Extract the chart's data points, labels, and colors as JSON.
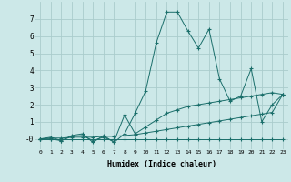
{
  "xlabel": "Humidex (Indice chaleur)",
  "bg_color": "#cce8e8",
  "grid_color": "#aacccc",
  "line_color": "#1a6e6a",
  "xlim": [
    -0.5,
    23.5
  ],
  "ylim": [
    -0.6,
    8.0
  ],
  "yticks": [
    0,
    1,
    2,
    3,
    4,
    5,
    6,
    7
  ],
  "ytick_labels": [
    "-0",
    "1",
    "2",
    "3",
    "4",
    "5",
    "6",
    "7"
  ],
  "xticks": [
    0,
    1,
    2,
    3,
    4,
    5,
    6,
    7,
    8,
    9,
    10,
    11,
    12,
    13,
    14,
    15,
    16,
    17,
    18,
    19,
    20,
    21,
    22,
    23
  ],
  "series": [
    {
      "x": [
        0,
        1,
        2,
        3,
        4,
        5,
        6,
        7,
        8,
        9,
        10,
        11,
        12,
        13,
        14,
        15,
        16,
        17,
        18,
        19,
        20,
        21,
        22,
        23
      ],
      "y": [
        0.0,
        0.0,
        0.0,
        0.0,
        0.0,
        0.0,
        0.0,
        0.0,
        0.0,
        0.0,
        0.0,
        0.0,
        0.0,
        0.0,
        0.0,
        0.0,
        0.0,
        0.0,
        0.0,
        0.0,
        0.0,
        0.0,
        0.0,
        0.0
      ]
    },
    {
      "x": [
        0,
        1,
        2,
        3,
        4,
        5,
        6,
        7,
        8,
        9,
        10,
        11,
        12,
        13,
        14,
        15,
        16,
        17,
        18,
        19,
        20,
        21,
        22,
        23
      ],
      "y": [
        0.0,
        0.1,
        -0.1,
        0.2,
        0.3,
        -0.2,
        0.2,
        -0.2,
        0.3,
        1.5,
        2.8,
        5.6,
        7.4,
        7.4,
        6.3,
        5.3,
        6.4,
        3.5,
        2.2,
        2.5,
        4.1,
        1.0,
        2.0,
        2.6
      ]
    },
    {
      "x": [
        0,
        1,
        2,
        3,
        4,
        5,
        6,
        7,
        8,
        9,
        10,
        11,
        12,
        13,
        14,
        15,
        16,
        17,
        18,
        19,
        20,
        21,
        22,
        23
      ],
      "y": [
        0.0,
        0.0,
        -0.1,
        0.15,
        0.2,
        -0.1,
        0.1,
        -0.15,
        1.4,
        0.3,
        0.7,
        1.1,
        1.5,
        1.7,
        1.9,
        2.0,
        2.1,
        2.2,
        2.3,
        2.4,
        2.5,
        2.6,
        2.7,
        2.6
      ]
    },
    {
      "x": [
        0,
        1,
        2,
        3,
        4,
        5,
        6,
        7,
        8,
        9,
        10,
        11,
        12,
        13,
        14,
        15,
        16,
        17,
        18,
        19,
        20,
        21,
        22,
        23
      ],
      "y": [
        0.0,
        0.05,
        0.05,
        0.1,
        0.1,
        0.1,
        0.15,
        0.15,
        0.2,
        0.25,
        0.35,
        0.45,
        0.55,
        0.65,
        0.75,
        0.85,
        0.95,
        1.05,
        1.15,
        1.25,
        1.35,
        1.45,
        1.55,
        2.6
      ]
    }
  ]
}
